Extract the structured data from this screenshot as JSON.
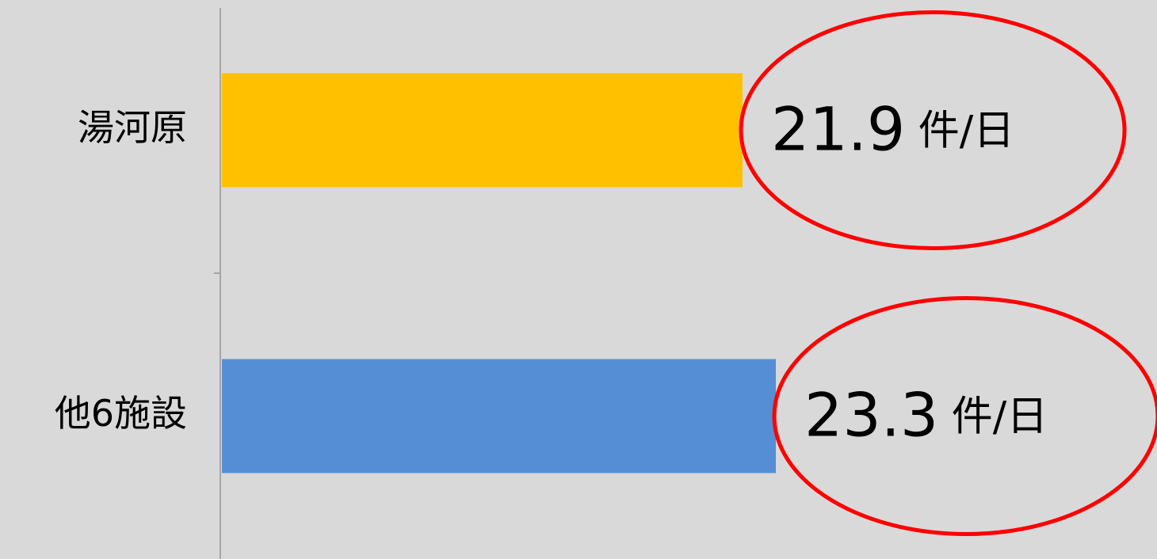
{
  "chart_data": {
    "type": "bar",
    "orientation": "horizontal",
    "categories": [
      "湯河原",
      "他6施設"
    ],
    "values": [
      21.9,
      23.3
    ],
    "value_labels": [
      "21.9 件/日",
      "23.3 件/日"
    ],
    "colors": [
      "#FFC000",
      "#558ED5"
    ],
    "xlim": [
      0,
      40
    ]
  }
}
